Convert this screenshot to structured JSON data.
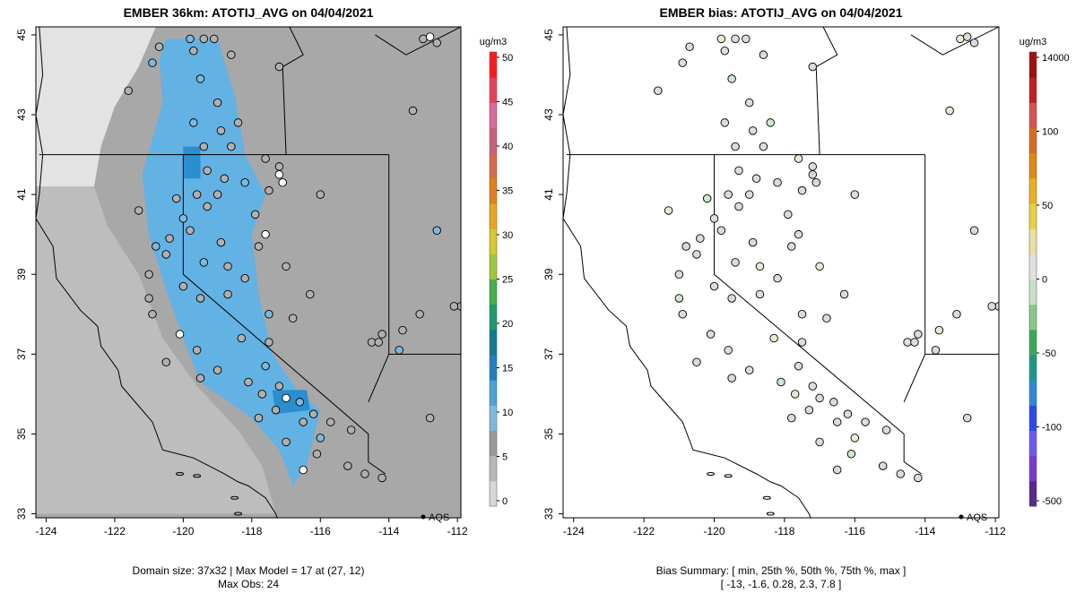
{
  "left_panel": {
    "title": "EMBER 36km: ATOTIJ_AVG on 04/04/2021",
    "footer_line1": "Domain size: 37x32 | Max Model = 17 at (27, 12)",
    "footer_line2": "Max Obs: 24",
    "legend_unit": "ug/m3",
    "legend_ticks": [
      "50",
      "45",
      "40",
      "35",
      "30",
      "25",
      "20",
      "15",
      "10",
      "5",
      "0"
    ],
    "legend_colors": [
      "#d8d8d8",
      "#b7b7b7",
      "#9a9a9a",
      "#7fb8dc",
      "#4aa3dc",
      "#1f7fc0",
      "#147a92",
      "#1f9a6a",
      "#43b04a",
      "#9ec83a",
      "#d7c830",
      "#e8a520",
      "#e0801a",
      "#d86a4a",
      "#c8607a",
      "#d86a9a",
      "#e8405a",
      "#ff1a1a"
    ],
    "x_ticks": [
      "-124",
      "-122",
      "-120",
      "-118",
      "-116",
      "-114",
      "-112"
    ],
    "y_ticks": [
      "33",
      "35",
      "37",
      "39",
      "41",
      "43",
      "45"
    ],
    "aqs_label": "AQS"
  },
  "right_panel": {
    "title": "EMBER bias: ATOTIJ_AVG on 04/04/2021",
    "footer_line1": "Bias Summary: [ min, 25th %, 50th %, 75th %, max ]",
    "footer_line2": "[ -13,   -1.6,   0.28,   2.3,   7.8 ]",
    "legend_unit": "ug/m3",
    "legend_ticks": [
      "14000",
      "100",
      "50",
      "0",
      "-50",
      "-100",
      "-500"
    ],
    "legend_colors": [
      "#5a2a8a",
      "#7a3ad0",
      "#6a5af0",
      "#2a4ae8",
      "#2a8ad8",
      "#1a9a8a",
      "#3aaa5a",
      "#8ac88a",
      "#c8e0c8",
      "#e0e0e0",
      "#e8e0a0",
      "#e8d040",
      "#e8b020",
      "#e08a10",
      "#d86a20",
      "#d85050",
      "#c02020",
      "#a01010"
    ],
    "x_ticks": [
      "-124",
      "-122",
      "-120",
      "-118",
      "-116",
      "-114",
      "-112"
    ],
    "y_ticks": [
      "33",
      "35",
      "37",
      "39",
      "41",
      "43",
      "45"
    ],
    "aqs_label": "AQS"
  },
  "map_extent": {
    "lon": [
      -124.3,
      -111.9
    ],
    "lat": [
      32.9,
      45.2
    ]
  },
  "colors": {
    "grid_light": "#e3e3e3",
    "grid_mid": "#bdbdbd",
    "grid_dark": "#a8a8a8",
    "grid_blue": "#62b2e4",
    "grid_dark_blue": "#2a8fd0",
    "point_gray": "#b0b0b0",
    "point_bias": "#dcdcdc"
  }
}
